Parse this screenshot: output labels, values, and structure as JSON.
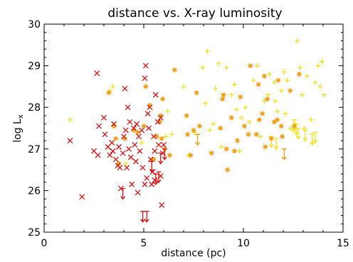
{
  "chart_data": {
    "type": "scatter",
    "title": "distance vs. X-ray luminosity",
    "xlabel": "distance (pc)",
    "ylabel": "log L",
    "ylabel_sub": "x",
    "xlim": [
      0,
      15
    ],
    "ylim": [
      25,
      30
    ],
    "x_ticks": [
      0,
      5,
      10,
      15
    ],
    "y_ticks": [
      25,
      26,
      27,
      28,
      29,
      30
    ],
    "grid": false,
    "colors": {
      "red": "#dd1111",
      "orange": "#f59a0c",
      "yellow": "#f3e012",
      "axis": "#000000"
    },
    "series": [
      {
        "marker": "x",
        "color": "red",
        "points": [
          [
            1.3,
            27.2
          ],
          [
            1.9,
            25.85
          ],
          [
            2.5,
            26.95
          ],
          [
            2.65,
            28.82
          ],
          [
            2.7,
            26.85
          ],
          [
            2.75,
            27.55
          ],
          [
            3.0,
            27.75
          ],
          [
            3.05,
            27.35
          ],
          [
            3.2,
            27.05
          ],
          [
            3.3,
            26.85
          ],
          [
            3.4,
            27.15
          ],
          [
            3.45,
            26.95
          ],
          [
            3.5,
            27.6
          ],
          [
            3.6,
            26.75
          ],
          [
            3.7,
            26.6
          ],
          [
            3.75,
            27.05
          ],
          [
            3.8,
            26.55
          ],
          [
            3.85,
            26.05
          ],
          [
            3.95,
            26.9
          ],
          [
            4.0,
            27.3
          ],
          [
            4.05,
            28.45
          ],
          [
            4.1,
            27.45
          ],
          [
            4.15,
            26.55
          ],
          [
            4.2,
            28.0
          ],
          [
            4.25,
            27.0
          ],
          [
            4.3,
            27.65
          ],
          [
            4.35,
            26.8
          ],
          [
            4.4,
            26.15
          ],
          [
            4.5,
            27.5
          ],
          [
            4.55,
            27.1
          ],
          [
            4.6,
            26.7
          ],
          [
            4.65,
            27.6
          ],
          [
            4.7,
            25.95
          ],
          [
            4.75,
            27.3
          ],
          [
            4.8,
            26.95
          ],
          [
            4.9,
            27.45
          ],
          [
            4.95,
            26.55
          ],
          [
            5.05,
            28.7
          ],
          [
            5.05,
            26.15
          ],
          [
            5.1,
            29.0
          ],
          [
            5.15,
            26.3
          ],
          [
            5.2,
            27.85
          ],
          [
            5.25,
            27.5
          ],
          [
            5.3,
            28.0
          ],
          [
            5.35,
            26.75
          ],
          [
            5.4,
            26.15
          ],
          [
            5.45,
            26.45
          ],
          [
            5.5,
            27.3
          ],
          [
            5.55,
            26.95
          ],
          [
            5.55,
            26.25
          ],
          [
            5.6,
            28.3
          ],
          [
            5.7,
            27.65
          ],
          [
            5.75,
            27.1
          ],
          [
            5.85,
            26.35
          ],
          [
            5.85,
            27.75
          ],
          [
            5.9,
            25.65
          ],
          [
            5.95,
            26.9
          ],
          [
            6.0,
            27.1
          ]
        ]
      },
      {
        "marker": "asterisk",
        "color": "orange",
        "points": [
          [
            3.25,
            28.35
          ],
          [
            3.5,
            27.55
          ],
          [
            3.6,
            27.25
          ],
          [
            3.75,
            26.65
          ],
          [
            4.05,
            27.25
          ],
          [
            4.5,
            27.45
          ],
          [
            4.7,
            27.4
          ],
          [
            5.0,
            27.55
          ],
          [
            5.1,
            28.5
          ],
          [
            5.3,
            28.05
          ],
          [
            5.5,
            26.75
          ],
          [
            5.65,
            27.3
          ],
          [
            5.8,
            27.65
          ],
          [
            5.85,
            27.8
          ],
          [
            5.9,
            27.25
          ],
          [
            5.95,
            28.2
          ],
          [
            6.05,
            27.0
          ],
          [
            6.3,
            26.85
          ],
          [
            6.55,
            28.9
          ],
          [
            7.15,
            27.8
          ],
          [
            7.2,
            27.35
          ],
          [
            7.35,
            26.85
          ],
          [
            7.5,
            27.45
          ],
          [
            7.65,
            28.35
          ],
          [
            7.8,
            27.55
          ],
          [
            8.4,
            26.9
          ],
          [
            8.85,
            27.5
          ],
          [
            8.95,
            28.2
          ],
          [
            9.0,
            28.3
          ],
          [
            9.15,
            27.0
          ],
          [
            9.2,
            26.5
          ],
          [
            9.4,
            27.75
          ],
          [
            9.55,
            26.95
          ],
          [
            9.7,
            27.2
          ],
          [
            9.85,
            28.25
          ],
          [
            10.05,
            27.55
          ],
          [
            10.25,
            27.35
          ],
          [
            10.35,
            29.0
          ],
          [
            10.65,
            27.35
          ],
          [
            10.75,
            28.55
          ],
          [
            10.8,
            27.7
          ],
          [
            10.95,
            27.85
          ],
          [
            11.05,
            28.75
          ],
          [
            11.1,
            27.05
          ],
          [
            11.2,
            28.2
          ],
          [
            11.4,
            27.25
          ],
          [
            11.55,
            27.65
          ],
          [
            11.7,
            27.7
          ],
          [
            11.75,
            28.65
          ],
          [
            11.9,
            27.55
          ],
          [
            11.95,
            27.3
          ],
          [
            12.35,
            28.4
          ],
          [
            12.55,
            27.55
          ],
          [
            12.8,
            28.8
          ]
        ]
      },
      {
        "marker": "plus",
        "color": "yellow",
        "points": [
          [
            1.3,
            27.7
          ],
          [
            3.3,
            28.4
          ],
          [
            3.45,
            28.5
          ],
          [
            4.1,
            26.65
          ],
          [
            4.9,
            27.15
          ],
          [
            6.1,
            27.3
          ],
          [
            6.2,
            27.9
          ],
          [
            6.4,
            27.35
          ],
          [
            7.0,
            28.5
          ],
          [
            7.25,
            26.85
          ],
          [
            7.55,
            27.4
          ],
          [
            7.95,
            28.95
          ],
          [
            8.1,
            28.1
          ],
          [
            8.2,
            29.35
          ],
          [
            8.3,
            27.45
          ],
          [
            8.5,
            27.6
          ],
          [
            8.6,
            28.45
          ],
          [
            8.75,
            29.05
          ],
          [
            8.9,
            27.05
          ],
          [
            9.15,
            28.95
          ],
          [
            9.4,
            28.3
          ],
          [
            9.55,
            28.55
          ],
          [
            9.65,
            27.95
          ],
          [
            9.8,
            26.95
          ],
          [
            9.9,
            27.75
          ],
          [
            10.1,
            28.0
          ],
          [
            10.3,
            27.65
          ],
          [
            10.5,
            28.65
          ],
          [
            10.7,
            29.0
          ],
          [
            10.85,
            27.3
          ],
          [
            11.05,
            28.15
          ],
          [
            11.25,
            28.3
          ],
          [
            11.3,
            28.8
          ],
          [
            11.55,
            28.6
          ],
          [
            11.6,
            28.15
          ],
          [
            11.7,
            27.9
          ],
          [
            11.9,
            28.4
          ],
          [
            12.05,
            28.85
          ],
          [
            12.1,
            27.85
          ],
          [
            12.2,
            28.65
          ],
          [
            12.35,
            27.5
          ],
          [
            12.5,
            27.45
          ],
          [
            12.6,
            27.6
          ],
          [
            12.7,
            29.6
          ],
          [
            12.85,
            28.95
          ],
          [
            12.95,
            28.3
          ],
          [
            13.05,
            27.5
          ],
          [
            13.2,
            28.75
          ],
          [
            13.4,
            27.7
          ],
          [
            13.6,
            28.6
          ],
          [
            13.75,
            29.0
          ],
          [
            13.85,
            28.5
          ],
          [
            13.95,
            29.1
          ],
          [
            14.05,
            28.3
          ]
        ]
      }
    ],
    "upper_limits": [
      {
        "color": "red",
        "x": 3.95,
        "y": 26.05
      },
      {
        "color": "red",
        "x": 4.95,
        "y": 25.5
      },
      {
        "color": "red",
        "x": 5.15,
        "y": 25.5
      },
      {
        "color": "red",
        "x": 5.4,
        "y": 26.7
      },
      {
        "color": "red",
        "x": 5.6,
        "y": 26.4
      },
      {
        "color": "red",
        "x": 5.75,
        "y": 26.45
      },
      {
        "color": "red",
        "x": 5.85,
        "y": 26.9
      },
      {
        "color": "red",
        "x": 6.05,
        "y": 27.0
      },
      {
        "color": "orange",
        "x": 7.7,
        "y": 27.35
      },
      {
        "color": "orange",
        "x": 12.05,
        "y": 27.0
      },
      {
        "color": "yellow",
        "x": 11.4,
        "y": 27.3
      },
      {
        "color": "yellow",
        "x": 11.65,
        "y": 27.25
      },
      {
        "color": "yellow",
        "x": 12.55,
        "y": 27.7
      },
      {
        "color": "yellow",
        "x": 12.65,
        "y": 27.6
      },
      {
        "color": "yellow",
        "x": 12.75,
        "y": 27.5
      },
      {
        "color": "yellow",
        "x": 13.1,
        "y": 27.45
      },
      {
        "color": "yellow",
        "x": 13.45,
        "y": 27.35
      },
      {
        "color": "yellow",
        "x": 13.6,
        "y": 27.4
      }
    ]
  }
}
